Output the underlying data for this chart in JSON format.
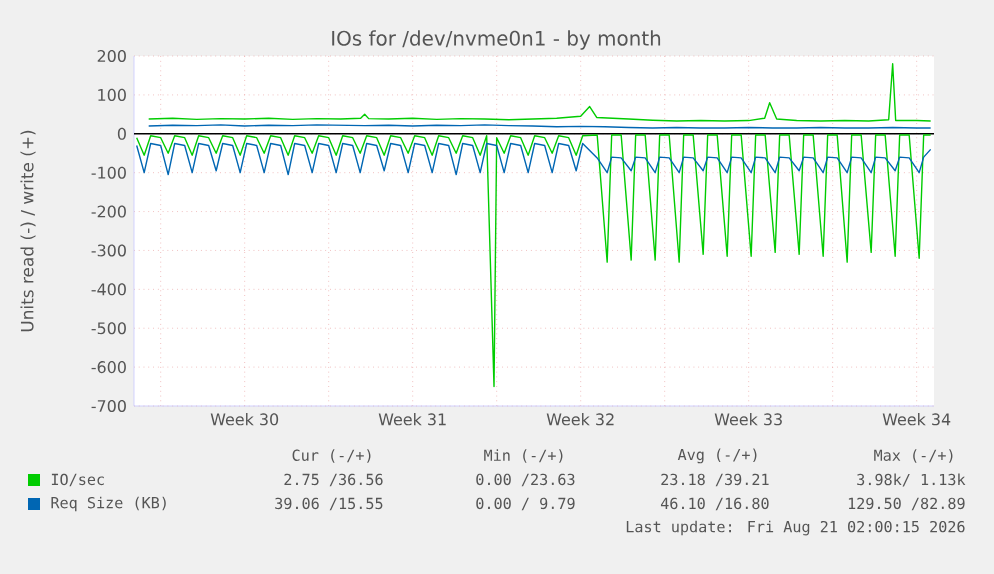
{
  "chart_data": {
    "type": "line",
    "title": "IOs for /dev/nvme0n1 - by month",
    "ylabel": "Units read (-) / write (+)",
    "xlim": [
      "2026-07-18T21:20",
      "2026-08-21T05:20"
    ],
    "xticks": [
      {
        "value": "2026-07-20",
        "label": null
      },
      {
        "value": "2026-07-23T12:00",
        "label": "Week 30"
      },
      {
        "value": "2026-07-27",
        "label": null
      },
      {
        "value": "2026-07-30T12:00",
        "label": "Week 31"
      },
      {
        "value": "2026-08-03",
        "label": null
      },
      {
        "value": "2026-08-06T12:00",
        "label": "Week 32"
      },
      {
        "value": "2026-08-10",
        "label": null
      },
      {
        "value": "2026-08-13T12:00",
        "label": "Week 33"
      },
      {
        "value": "2026-08-17",
        "label": null
      },
      {
        "value": "2026-08-20T12:00",
        "label": "Week 34"
      }
    ],
    "ylim": [
      -700,
      200
    ],
    "yticks": [
      -700,
      -600,
      -500,
      -400,
      -300,
      -200,
      -100,
      0,
      100,
      200
    ],
    "grid": true,
    "legend": "bottom",
    "ref_lines": [
      {
        "axis": "y",
        "value": 0,
        "color": "#000000"
      }
    ],
    "series": [
      {
        "color": "#00cc00",
        "x": [
          "2026-07-19T00:00",
          "2026-07-19T07:30",
          "2026-07-19T14:00",
          "2026-07-20T00:00",
          "2026-07-20T07:30",
          "2026-07-20T14:00",
          "2026-07-21T00:00",
          "2026-07-21T07:30",
          "2026-07-21T14:00",
          "2026-07-22T00:00",
          "2026-07-22T07:30",
          "2026-07-22T14:00",
          "2026-07-23T00:00",
          "2026-07-23T07:30",
          "2026-07-23T14:00",
          "2026-07-24T00:00",
          "2026-07-24T07:30",
          "2026-07-24T14:00",
          "2026-07-25T00:00",
          "2026-07-25T07:30",
          "2026-07-25T14:00",
          "2026-07-26T00:00",
          "2026-07-26T07:30",
          "2026-07-26T14:00",
          "2026-07-27T00:00",
          "2026-07-27T07:30",
          "2026-07-27T14:00",
          "2026-07-28T00:00",
          "2026-07-28T07:30",
          "2026-07-28T14:00",
          "2026-07-29T00:00",
          "2026-07-29T07:30",
          "2026-07-29T14:00",
          "2026-07-30T00:00",
          "2026-07-30T07:30",
          "2026-07-30T14:00",
          "2026-07-31T00:00",
          "2026-07-31T07:30",
          "2026-07-31T14:00",
          "2026-08-01T00:00",
          "2026-08-01T07:30",
          "2026-08-01T14:00",
          "2026-08-02T00:00",
          "2026-08-02T07:30",
          "2026-08-02T14:00",
          "2026-08-02T21:20",
          "2026-08-03T00:00",
          "2026-08-03T07:30",
          "2026-08-03T14:00",
          "2026-08-04T00:00",
          "2026-08-04T07:30",
          "2026-08-04T14:00",
          "2026-08-05T00:00",
          "2026-08-05T07:30",
          "2026-08-05T14:00",
          "2026-08-06T00:00",
          "2026-08-06T07:30",
          "2026-08-06T14:00",
          "2026-08-07T04:30",
          "2026-08-07T14:30",
          "2026-08-07T19:00",
          "2026-08-08T04:30",
          "2026-08-08T14:30",
          "2026-08-08T19:00",
          "2026-08-09T04:30",
          "2026-08-09T14:30",
          "2026-08-09T19:00",
          "2026-08-10T04:30",
          "2026-08-10T14:30",
          "2026-08-10T19:00",
          "2026-08-11T04:30",
          "2026-08-11T14:30",
          "2026-08-11T19:00",
          "2026-08-12T04:30",
          "2026-08-12T14:30",
          "2026-08-12T19:00",
          "2026-08-13T04:30",
          "2026-08-13T14:30",
          "2026-08-13T19:00",
          "2026-08-14T04:30",
          "2026-08-14T14:30",
          "2026-08-14T19:00",
          "2026-08-15T04:30",
          "2026-08-15T14:30",
          "2026-08-15T19:00",
          "2026-08-16T04:30",
          "2026-08-16T14:30",
          "2026-08-16T19:00",
          "2026-08-17T04:30",
          "2026-08-17T14:30",
          "2026-08-17T19:00",
          "2026-08-18T04:30",
          "2026-08-18T14:30",
          "2026-08-18T19:00",
          "2026-08-19T04:30",
          "2026-08-19T14:30",
          "2026-08-19T19:00",
          "2026-08-20T04:30",
          "2026-08-20T14:30",
          "2026-08-20T19:00",
          "2026-08-21T02:00"
        ],
        "values": [
          -10,
          -55,
          -5,
          -10,
          -50,
          -5,
          -10,
          -55,
          -5,
          -10,
          -50,
          -5,
          -10,
          -55,
          -5,
          -10,
          -50,
          -5,
          -10,
          -55,
          -5,
          -10,
          -50,
          -5,
          -10,
          -55,
          -5,
          -10,
          -50,
          -5,
          -10,
          -55,
          -5,
          -10,
          -50,
          -5,
          -10,
          -55,
          -5,
          -10,
          -50,
          -5,
          -10,
          -55,
          -5,
          -650,
          -10,
          -50,
          -5,
          -10,
          -55,
          -5,
          -10,
          -50,
          -5,
          -10,
          -55,
          -5,
          -3,
          -330,
          -3,
          -3,
          -325,
          -3,
          -3,
          -325,
          -3,
          -3,
          -330,
          -3,
          -3,
          -310,
          -3,
          -3,
          -315,
          -3,
          -3,
          -315,
          -3,
          -3,
          -305,
          -3,
          -3,
          -310,
          -3,
          -3,
          -315,
          -3,
          -3,
          -330,
          -3,
          -3,
          -305,
          -3,
          -3,
          -315,
          -3,
          -3,
          -320,
          -3,
          -3
        ]
      },
      {
        "name": "IO/sec",
        "color": "#00cc00",
        "x": [
          "2026-07-19T12:00",
          "2026-07-20T12:00",
          "2026-07-21T12:00",
          "2026-07-22T12:00",
          "2026-07-23T12:00",
          "2026-07-24T12:00",
          "2026-07-25T12:00",
          "2026-07-26T12:00",
          "2026-07-27T12:00",
          "2026-07-28T08:00",
          "2026-07-28T12:00",
          "2026-07-28T16:00",
          "2026-07-29T12:00",
          "2026-07-30T12:00",
          "2026-07-31T12:00",
          "2026-08-01T12:00",
          "2026-08-02T12:00",
          "2026-08-03T12:00",
          "2026-08-04T12:00",
          "2026-08-05T12:00",
          "2026-08-06T12:00",
          "2026-08-06T21:00",
          "2026-08-07T04:00",
          "2026-08-08T12:00",
          "2026-08-09T12:00",
          "2026-08-10T12:00",
          "2026-08-11T12:00",
          "2026-08-12T12:00",
          "2026-08-13T12:00",
          "2026-08-14T04:00",
          "2026-08-14T09:00",
          "2026-08-14T16:00",
          "2026-08-15T12:00",
          "2026-08-16T12:00",
          "2026-08-17T12:00",
          "2026-08-18T12:00",
          "2026-08-19T08:00",
          "2026-08-19T12:00",
          "2026-08-19T15:00",
          "2026-08-20T12:00",
          "2026-08-21T02:00"
        ],
        "values": [
          38,
          40,
          37,
          39,
          38,
          40,
          37,
          39,
          38,
          40,
          50,
          39,
          38,
          40,
          37,
          39,
          38,
          36,
          38,
          40,
          45,
          70,
          42,
          38,
          35,
          33,
          34,
          33,
          34,
          40,
          80,
          38,
          34,
          33,
          34,
          33,
          36,
          180,
          34,
          34,
          33
        ]
      },
      {
        "color": "#0066b3",
        "x": [
          "2026-07-19T00:00",
          "2026-07-19T07:30",
          "2026-07-19T14:00",
          "2026-07-20T00:00",
          "2026-07-20T07:30",
          "2026-07-20T14:00",
          "2026-07-21T00:00",
          "2026-07-21T07:30",
          "2026-07-21T14:00",
          "2026-07-22T00:00",
          "2026-07-22T07:30",
          "2026-07-22T14:00",
          "2026-07-23T00:00",
          "2026-07-23T07:30",
          "2026-07-23T14:00",
          "2026-07-24T00:00",
          "2026-07-24T07:30",
          "2026-07-24T14:00",
          "2026-07-25T00:00",
          "2026-07-25T07:30",
          "2026-07-25T14:00",
          "2026-07-26T00:00",
          "2026-07-26T07:30",
          "2026-07-26T14:00",
          "2026-07-27T00:00",
          "2026-07-27T07:30",
          "2026-07-27T14:00",
          "2026-07-28T00:00",
          "2026-07-28T07:30",
          "2026-07-28T14:00",
          "2026-07-29T00:00",
          "2026-07-29T07:30",
          "2026-07-29T14:00",
          "2026-07-30T00:00",
          "2026-07-30T07:30",
          "2026-07-30T14:00",
          "2026-07-31T00:00",
          "2026-07-31T07:30",
          "2026-07-31T14:00",
          "2026-08-01T00:00",
          "2026-08-01T07:30",
          "2026-08-01T14:00",
          "2026-08-02T00:00",
          "2026-08-02T07:30",
          "2026-08-02T14:00",
          "2026-08-03T00:00",
          "2026-08-03T07:30",
          "2026-08-03T14:00",
          "2026-08-04T00:00",
          "2026-08-04T07:30",
          "2026-08-04T14:00",
          "2026-08-05T00:00",
          "2026-08-05T07:30",
          "2026-08-05T14:00",
          "2026-08-06T00:00",
          "2026-08-06T07:30",
          "2026-08-06T14:00",
          "2026-08-07T04:30",
          "2026-08-07T14:30",
          "2026-08-07T19:00",
          "2026-08-08T04:30",
          "2026-08-08T14:30",
          "2026-08-08T19:00",
          "2026-08-09T04:30",
          "2026-08-09T14:30",
          "2026-08-09T19:00",
          "2026-08-10T04:30",
          "2026-08-10T14:30",
          "2026-08-10T19:00",
          "2026-08-11T04:30",
          "2026-08-11T14:30",
          "2026-08-11T19:00",
          "2026-08-12T04:30",
          "2026-08-12T14:30",
          "2026-08-12T19:00",
          "2026-08-13T04:30",
          "2026-08-13T14:30",
          "2026-08-13T19:00",
          "2026-08-14T04:30",
          "2026-08-14T14:30",
          "2026-08-14T19:00",
          "2026-08-15T04:30",
          "2026-08-15T14:30",
          "2026-08-15T19:00",
          "2026-08-16T04:30",
          "2026-08-16T14:30",
          "2026-08-16T19:00",
          "2026-08-17T04:30",
          "2026-08-17T14:30",
          "2026-08-17T19:00",
          "2026-08-18T04:30",
          "2026-08-18T14:30",
          "2026-08-18T19:00",
          "2026-08-19T04:30",
          "2026-08-19T14:30",
          "2026-08-19T19:00",
          "2026-08-20T04:30",
          "2026-08-20T14:30",
          "2026-08-20T19:00",
          "2026-08-21T02:00"
        ],
        "values": [
          -30,
          -100,
          -25,
          -30,
          -105,
          -25,
          -30,
          -100,
          -25,
          -30,
          -95,
          -25,
          -30,
          -100,
          -25,
          -30,
          -100,
          -25,
          -30,
          -105,
          -25,
          -30,
          -100,
          -25,
          -30,
          -100,
          -25,
          -30,
          -100,
          -25,
          -30,
          -95,
          -25,
          -30,
          -100,
          -25,
          -30,
          -100,
          -25,
          -30,
          -105,
          -25,
          -30,
          -100,
          -25,
          -30,
          -100,
          -25,
          -30,
          -100,
          -25,
          -30,
          -100,
          -25,
          -30,
          -95,
          -25,
          -62,
          -100,
          -60,
          -62,
          -95,
          -60,
          -62,
          -100,
          -60,
          -62,
          -100,
          -60,
          -62,
          -95,
          -60,
          -62,
          -100,
          -60,
          -62,
          -100,
          -60,
          -62,
          -100,
          -60,
          -62,
          -95,
          -60,
          -62,
          -100,
          -60,
          -62,
          -100,
          -60,
          -62,
          -100,
          -60,
          -62,
          -95,
          -60,
          -62,
          -100,
          -60,
          -40
        ]
      },
      {
        "name": "Req Size (KB)",
        "color": "#0066b3",
        "x": [
          "2026-07-19T12:00",
          "2026-07-20T12:00",
          "2026-07-21T12:00",
          "2026-07-22T12:00",
          "2026-07-23T12:00",
          "2026-07-24T12:00",
          "2026-07-25T12:00",
          "2026-07-26T12:00",
          "2026-07-27T12:00",
          "2026-07-28T12:00",
          "2026-07-29T12:00",
          "2026-07-30T12:00",
          "2026-07-31T12:00",
          "2026-08-01T12:00",
          "2026-08-02T12:00",
          "2026-08-03T12:00",
          "2026-08-04T12:00",
          "2026-08-05T12:00",
          "2026-08-06T12:00",
          "2026-08-07T12:00",
          "2026-08-08T12:00",
          "2026-08-09T12:00",
          "2026-08-10T12:00",
          "2026-08-11T12:00",
          "2026-08-12T12:00",
          "2026-08-13T12:00",
          "2026-08-14T12:00",
          "2026-08-15T12:00",
          "2026-08-16T12:00",
          "2026-08-17T12:00",
          "2026-08-18T12:00",
          "2026-08-19T12:00",
          "2026-08-20T12:00",
          "2026-08-21T02:00"
        ],
        "values": [
          20,
          22,
          21,
          23,
          20,
          22,
          21,
          23,
          22,
          21,
          22,
          20,
          22,
          21,
          23,
          21,
          20,
          18,
          19,
          18,
          16,
          15,
          16,
          15,
          15,
          16,
          15,
          15,
          16,
          15,
          15,
          16,
          15,
          15
        ]
      }
    ],
    "annotations": [
      "Cur (-/+)",
      "Min (-/+)",
      "Avg (-/+)",
      "Max (-/+)",
      "2.75 /36.56",
      "0.00 /23.63",
      "23.18 /39.21",
      "3.98k/ 1.13k",
      "39.06 /15.55",
      "0.00 / 9.79",
      "46.10 /16.80",
      "129.50 /82.89",
      "Last update: Fri Aug 21 02:00:15 2026"
    ]
  }
}
